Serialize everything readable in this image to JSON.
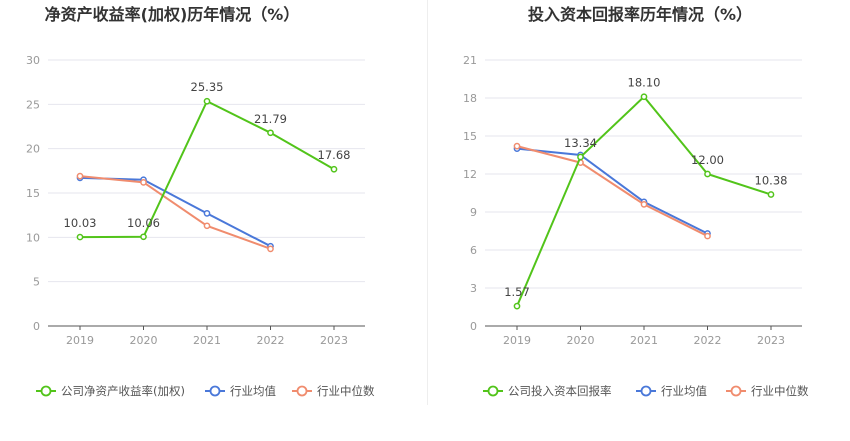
{
  "chart_data": [
    {
      "type": "line",
      "title": "净资产收益率(加权)历年情况（%）",
      "categories": [
        "2019",
        "2020",
        "2021",
        "2022",
        "2023"
      ],
      "ylim": [
        0,
        30
      ],
      "yticks": [
        0,
        5,
        10,
        15,
        20,
        25,
        30
      ],
      "grid": true,
      "legend_position": "bottom-left",
      "series": [
        {
          "name": "公司净资产收益率(加权)",
          "color": "#52c41a",
          "values": [
            10.03,
            10.06,
            25.35,
            21.79,
            17.68
          ],
          "data_labels": [
            "10.03",
            "10.06",
            "25.35",
            "21.79",
            "17.68"
          ]
        },
        {
          "name": "行业均值",
          "color": "#4a78d9",
          "values": [
            16.7,
            16.5,
            12.7,
            9.0,
            null
          ]
        },
        {
          "name": "行业中位数",
          "color": "#f08c6e",
          "values": [
            16.9,
            16.2,
            11.3,
            8.7,
            null
          ]
        }
      ]
    },
    {
      "type": "line",
      "title": "投入资本回报率历年情况（%）",
      "categories": [
        "2019",
        "2020",
        "2021",
        "2022",
        "2023"
      ],
      "ylim": [
        0,
        21
      ],
      "yticks": [
        0,
        3,
        6,
        9,
        12,
        15,
        18,
        21
      ],
      "grid": true,
      "legend_position": "bottom-left",
      "series": [
        {
          "name": "公司投入资本回报率",
          "color": "#52c41a",
          "values": [
            1.57,
            13.34,
            18.1,
            12.0,
            10.38
          ],
          "data_labels": [
            "1.57",
            "13.34",
            "18.10",
            "12.00",
            "10.38"
          ]
        },
        {
          "name": "行业均值",
          "color": "#4a78d9",
          "values": [
            14.0,
            13.5,
            9.8,
            7.3,
            null
          ]
        },
        {
          "name": "行业中位数",
          "color": "#f08c6e",
          "values": [
            14.2,
            12.9,
            9.6,
            7.1,
            null
          ]
        }
      ]
    }
  ]
}
